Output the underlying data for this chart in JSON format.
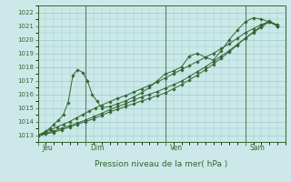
{
  "title": "",
  "xlabel": "Pression niveau de la mer( hPa )",
  "bg_color": "#cce8e8",
  "grid_color": "#99cccc",
  "line_color": "#336633",
  "spine_color": "#336633",
  "ylim": [
    1012.5,
    1022.5
  ],
  "yticks": [
    1013,
    1014,
    1015,
    1016,
    1017,
    1018,
    1019,
    1020,
    1021,
    1022
  ],
  "xlim_max": 15.5,
  "day_positions": [
    0.3,
    3.3,
    8.3,
    13.3
  ],
  "day_vlines": [
    0,
    3,
    8,
    13
  ],
  "day_labels": [
    "Jeu",
    "Dim",
    "Ven",
    "Sam"
  ],
  "line1_x": [
    0,
    0.4,
    0.8,
    1.2,
    1.6,
    2.0,
    2.4,
    2.8,
    3.2,
    3.6,
    4.0,
    4.5,
    5.0,
    5.5,
    6.0,
    6.5,
    7.0,
    7.5,
    8.0,
    8.5,
    9.0,
    9.5,
    10.0,
    10.5,
    11.0,
    11.5,
    12.0,
    12.5,
    13.0,
    13.5,
    14.0,
    14.5,
    15.0
  ],
  "line1_y": [
    1013.0,
    1013.2,
    1013.4,
    1013.6,
    1013.8,
    1014.0,
    1014.25,
    1014.5,
    1014.75,
    1015.0,
    1015.2,
    1015.45,
    1015.7,
    1015.9,
    1016.15,
    1016.4,
    1016.65,
    1016.9,
    1017.2,
    1017.5,
    1017.8,
    1018.1,
    1018.4,
    1018.7,
    1019.0,
    1019.35,
    1019.7,
    1020.1,
    1020.5,
    1020.8,
    1021.1,
    1021.3,
    1021.1
  ],
  "line2_x": [
    0,
    0.25,
    0.5,
    0.75,
    1.0,
    1.3,
    1.6,
    1.9,
    2.2,
    2.5,
    2.8,
    3.1,
    3.4,
    3.7,
    4.0,
    4.5,
    5.0,
    5.5,
    6.0,
    6.5,
    7.0,
    7.5,
    8.0,
    8.5,
    9.0,
    9.5,
    10.0,
    10.5,
    11.0,
    11.5,
    12.0,
    12.5,
    13.0,
    13.5,
    14.0,
    14.5,
    15.0
  ],
  "line2_y": [
    1013.0,
    1013.1,
    1013.3,
    1013.5,
    1013.8,
    1014.1,
    1014.5,
    1015.4,
    1017.4,
    1017.8,
    1017.6,
    1017.0,
    1016.0,
    1015.5,
    1015.0,
    1015.1,
    1015.3,
    1015.5,
    1015.8,
    1016.1,
    1016.5,
    1017.0,
    1017.5,
    1017.7,
    1018.0,
    1018.8,
    1019.0,
    1018.7,
    1018.5,
    1019.2,
    1020.0,
    1020.7,
    1021.3,
    1021.6,
    1021.5,
    1021.3,
    1021.0
  ],
  "line3_x": [
    0,
    0.5,
    1.0,
    1.5,
    2.0,
    2.5,
    3.0,
    3.5,
    4.0,
    4.5,
    5.0,
    5.5,
    6.0,
    6.5,
    7.0,
    7.5,
    8.0,
    8.5,
    9.0,
    9.5,
    10.0,
    10.5,
    11.0,
    11.5,
    12.0,
    12.5,
    13.0,
    13.5,
    14.0,
    14.5,
    15.0
  ],
  "line3_y": [
    1013.0,
    1013.15,
    1013.3,
    1013.5,
    1013.7,
    1013.9,
    1014.1,
    1014.35,
    1014.6,
    1014.85,
    1015.1,
    1015.3,
    1015.55,
    1015.8,
    1016.0,
    1016.2,
    1016.45,
    1016.7,
    1016.95,
    1017.3,
    1017.65,
    1018.0,
    1018.4,
    1018.8,
    1019.2,
    1019.65,
    1020.1,
    1020.5,
    1020.9,
    1021.3,
    1021.0
  ],
  "line4_x": [
    0,
    0.5,
    1.0,
    1.5,
    2.0,
    2.5,
    3.0,
    3.5,
    4.0,
    4.5,
    5.0,
    5.5,
    6.0,
    6.5,
    7.0,
    7.5,
    8.0,
    8.5,
    9.0,
    9.5,
    10.0,
    10.5,
    11.0,
    11.5,
    12.0,
    12.5,
    13.0,
    13.5,
    14.0,
    14.5,
    15.0
  ],
  "line4_y": [
    1013.0,
    1013.1,
    1013.2,
    1013.4,
    1013.6,
    1013.8,
    1014.0,
    1014.2,
    1014.45,
    1014.7,
    1014.9,
    1015.1,
    1015.3,
    1015.5,
    1015.7,
    1015.9,
    1016.1,
    1016.4,
    1016.7,
    1017.05,
    1017.4,
    1017.8,
    1018.2,
    1018.65,
    1019.1,
    1019.6,
    1020.1,
    1020.55,
    1021.0,
    1021.4,
    1021.0
  ]
}
